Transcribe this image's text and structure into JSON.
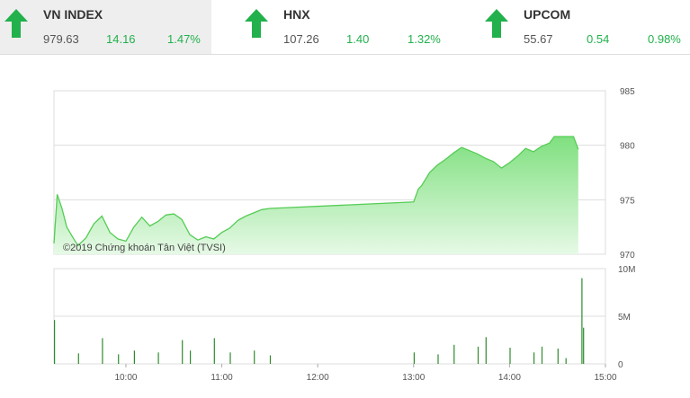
{
  "indices": [
    {
      "name": "VN INDEX",
      "price": "979.63",
      "change": "14.16",
      "pct": "1.47%",
      "trend": "up",
      "active": true
    },
    {
      "name": "HNX",
      "price": "107.26",
      "change": "1.40",
      "pct": "1.32%",
      "trend": "up",
      "active": false
    },
    {
      "name": "UPCOM",
      "price": "55.67",
      "change": "0.54",
      "pct": "0.98%",
      "trend": "up",
      "active": false
    }
  ],
  "colors": {
    "up": "#22b14c",
    "fill_top": "#7fe07f",
    "fill_bottom": "#e6f9e6",
    "line": "#55cc55",
    "volume": "#2e8b2e"
  },
  "chart_data": [
    {
      "type": "area",
      "title": "",
      "watermark": "©2019 Chứng khoán Tân Việt (TVSI)",
      "ylim": [
        970,
        985
      ],
      "y_ticks": [
        "985",
        "980",
        "975",
        "970"
      ],
      "x_range": [
        "09:15",
        "15:00"
      ],
      "series": [
        {
          "points": [
            [
              "09:15",
              971.0
            ],
            [
              "09:17",
              975.5
            ],
            [
              "09:20",
              974.2
            ],
            [
              "09:23",
              972.5
            ],
            [
              "09:27",
              971.5
            ],
            [
              "09:30",
              970.8
            ],
            [
              "09:35",
              971.5
            ],
            [
              "09:40",
              972.8
            ],
            [
              "09:45",
              973.5
            ],
            [
              "09:50",
              972.0
            ],
            [
              "09:55",
              971.4
            ],
            [
              "10:00",
              971.2
            ],
            [
              "10:05",
              972.5
            ],
            [
              "10:10",
              973.4
            ],
            [
              "10:15",
              972.6
            ],
            [
              "10:20",
              973.0
            ],
            [
              "10:25",
              973.6
            ],
            [
              "10:30",
              973.7
            ],
            [
              "10:35",
              973.2
            ],
            [
              "10:40",
              971.8
            ],
            [
              "10:45",
              971.3
            ],
            [
              "10:50",
              971.6
            ],
            [
              "10:55",
              971.4
            ],
            [
              "11:00",
              972.0
            ],
            [
              "11:05",
              972.4
            ],
            [
              "11:10",
              973.1
            ],
            [
              "11:15",
              973.5
            ],
            [
              "11:20",
              973.8
            ],
            [
              "11:25",
              974.1
            ],
            [
              "11:30",
              974.2
            ],
            [
              "13:00",
              974.8
            ],
            [
              "13:03",
              976.0
            ],
            [
              "13:05",
              976.3
            ],
            [
              "13:10",
              977.5
            ],
            [
              "13:15",
              978.2
            ],
            [
              "13:20",
              978.7
            ],
            [
              "13:25",
              979.3
            ],
            [
              "13:30",
              979.8
            ],
            [
              "13:35",
              979.5
            ],
            [
              "13:40",
              979.2
            ],
            [
              "13:45",
              978.8
            ],
            [
              "13:50",
              978.5
            ],
            [
              "13:55",
              977.9
            ],
            [
              "14:00",
              978.4
            ],
            [
              "14:05",
              979.0
            ],
            [
              "14:10",
              979.7
            ],
            [
              "14:15",
              979.4
            ],
            [
              "14:20",
              979.9
            ],
            [
              "14:25",
              980.2
            ],
            [
              "14:28",
              980.8
            ],
            [
              "14:35",
              980.8
            ],
            [
              "14:40",
              980.8
            ],
            [
              "14:43",
              979.63
            ]
          ]
        }
      ]
    },
    {
      "type": "bar",
      "title": "",
      "ylim": [
        0,
        10
      ],
      "y_unit": "M",
      "y_ticks": [
        "10M",
        "5M",
        "0"
      ],
      "x_ticks": [
        "10:00",
        "11:00",
        "12:00",
        "13:00",
        "14:00",
        "15:00"
      ],
      "series": [
        {
          "points": [
            [
              "09:15",
              4.6
            ],
            [
              "09:30",
              1.1
            ],
            [
              "09:45",
              2.7
            ],
            [
              "09:55",
              1.0
            ],
            [
              "10:05",
              1.4
            ],
            [
              "10:20",
              1.2
            ],
            [
              "10:35",
              2.5
            ],
            [
              "10:40",
              1.4
            ],
            [
              "10:55",
              2.7
            ],
            [
              "11:05",
              1.2
            ],
            [
              "11:20",
              1.4
            ],
            [
              "11:30",
              0.9
            ],
            [
              "13:00",
              1.2
            ],
            [
              "13:15",
              1.0
            ],
            [
              "13:25",
              2.0
            ],
            [
              "13:40",
              1.8
            ],
            [
              "13:45",
              2.8
            ],
            [
              "14:00",
              1.7
            ],
            [
              "14:15",
              1.2
            ],
            [
              "14:20",
              1.8
            ],
            [
              "14:30",
              1.6
            ],
            [
              "14:35",
              0.6
            ],
            [
              "14:45",
              9.0
            ],
            [
              "14:46",
              3.8
            ]
          ]
        }
      ]
    }
  ]
}
